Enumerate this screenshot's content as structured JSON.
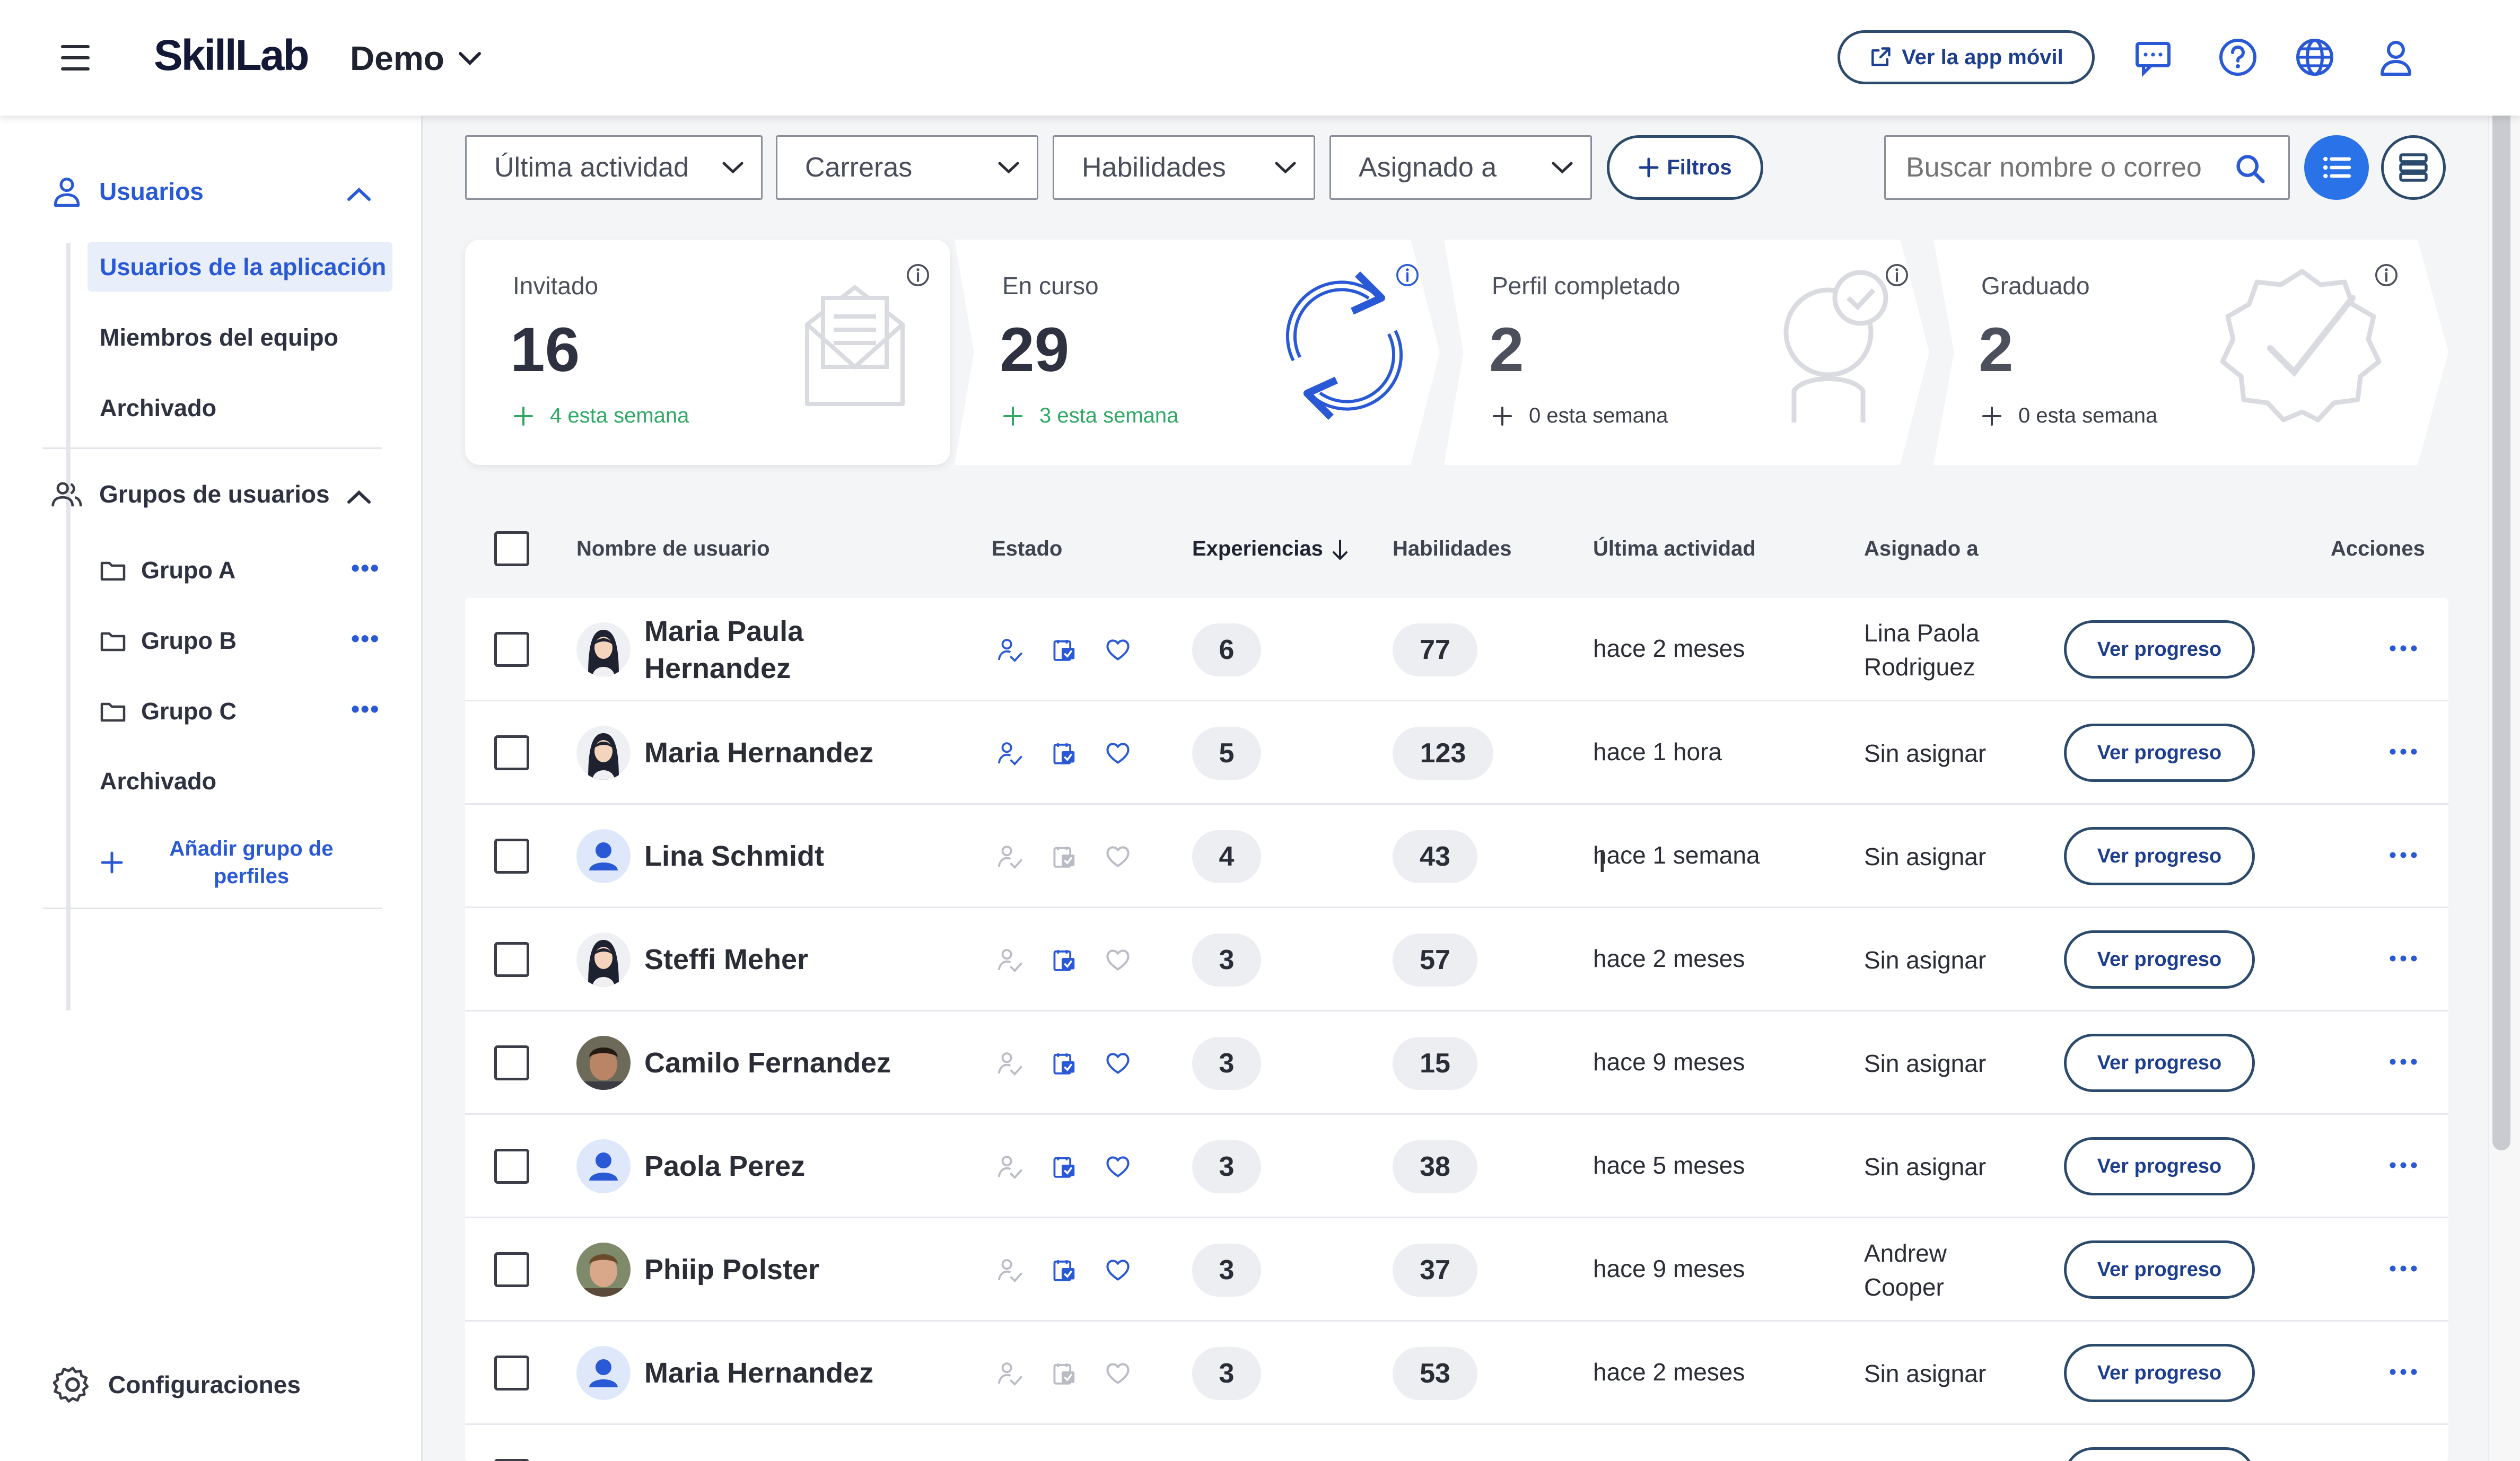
{
  "header": {
    "logo": "SkillLab",
    "org": "Demo",
    "app_button": "Ver la app móvil"
  },
  "sidebar": {
    "usuarios": "Usuarios",
    "items": [
      "Usuarios de la aplicación",
      "Miembros del equipo",
      "Archivado"
    ],
    "grupos_title": "Grupos de usuarios",
    "groups": [
      "Grupo A",
      "Grupo B",
      "Grupo C"
    ],
    "groups_archived": "Archivado",
    "add_group": "Añadir grupo de perfiles",
    "settings": "Configuraciones"
  },
  "filters": {
    "last_activity": "Última actividad",
    "careers": "Carreras",
    "skills": "Habilidades",
    "assigned": "Asignado a",
    "more": "Filtros",
    "search_placeholder": "Buscar nombre o correo"
  },
  "stats": [
    {
      "label": "Invitado",
      "value": "16",
      "week": "4 esta semana"
    },
    {
      "label": "En curso",
      "value": "29",
      "week": "3 esta semana"
    },
    {
      "label": "Perfil completado",
      "value": "2",
      "week": "0 esta semana"
    },
    {
      "label": "Graduado",
      "value": "2",
      "week": "0 esta semana"
    }
  ],
  "table": {
    "headers": {
      "name": "Nombre de usuario",
      "status": "Estado",
      "experiences": "Experiencias",
      "skills": "Habilidades",
      "last_activity": "Última actividad",
      "assigned": "Asignado a",
      "actions": "Acciones"
    },
    "view_progress": "Ver progreso",
    "rows": [
      {
        "name": "Maria Paula Hernandez",
        "exp": "6",
        "skills": "77",
        "activity": "hace 2 meses",
        "assigned": "Lina Paola Rodriguez",
        "status": [
          true,
          true,
          true
        ],
        "avatar": "female"
      },
      {
        "name": "Maria Hernandez",
        "exp": "5",
        "skills": "123",
        "activity": "hace 1 hora",
        "assigned": "Sin asignar",
        "status": [
          true,
          true,
          true
        ],
        "avatar": "female"
      },
      {
        "name": "Lina Schmidt",
        "exp": "4",
        "skills": "43",
        "activity": "hace 1 semana",
        "assigned": "Sin asignar",
        "status": [
          false,
          false,
          false
        ],
        "avatar": "default"
      },
      {
        "name": "Steffi Meher",
        "exp": "3",
        "skills": "57",
        "activity": "hace 2 meses",
        "assigned": "Sin asignar",
        "status": [
          false,
          true,
          false
        ],
        "avatar": "female"
      },
      {
        "name": "Camilo Fernandez",
        "exp": "3",
        "skills": "15",
        "activity": "hace 9 meses",
        "assigned": "Sin asignar",
        "status": [
          false,
          true,
          true
        ],
        "avatar": "photo1"
      },
      {
        "name": "Paola Perez",
        "exp": "3",
        "skills": "38",
        "activity": "hace 5 meses",
        "assigned": "Sin asignar",
        "status": [
          false,
          true,
          true
        ],
        "avatar": "default"
      },
      {
        "name": "Phiip Polster",
        "exp": "3",
        "skills": "37",
        "activity": "hace 9 meses",
        "assigned": "Andrew Cooper",
        "status": [
          false,
          true,
          true
        ],
        "avatar": "photo2"
      },
      {
        "name": "Maria Hernandez",
        "exp": "3",
        "skills": "53",
        "activity": "hace 2 meses",
        "assigned": "Sin asignar",
        "status": [
          false,
          false,
          false
        ],
        "avatar": "default"
      }
    ]
  },
  "colors": {
    "accent": "#2a59d6",
    "button_border": "#2c4a6b",
    "success": "#2fa865",
    "active_bg": "#e9eefb"
  }
}
